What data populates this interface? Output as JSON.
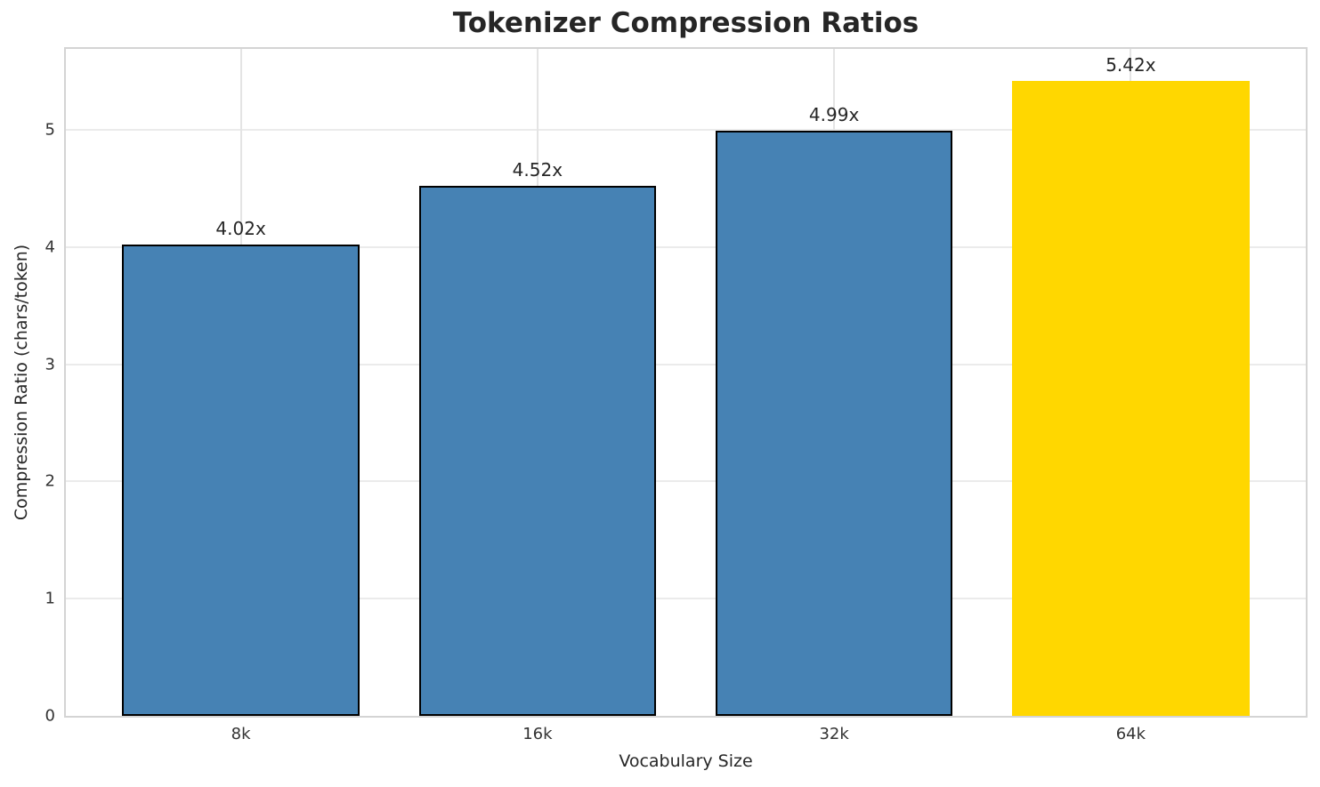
{
  "chart_data": {
    "type": "bar",
    "title": "Tokenizer Compression Ratios",
    "xlabel": "Vocabulary Size",
    "ylabel": "Compression Ratio (chars/token)",
    "categories": [
      "8k",
      "16k",
      "32k",
      "64k"
    ],
    "values": [
      4.02,
      4.52,
      4.99,
      5.42
    ],
    "bar_labels": [
      "4.02x",
      "4.52x",
      "4.99x",
      "5.42x"
    ],
    "bar_colors": [
      "#4682B4",
      "#4682B4",
      "#4682B4",
      "#FFD700"
    ],
    "bar_edge_colors": [
      "#000000",
      "#000000",
      "#000000",
      "none"
    ],
    "highlight_color": "#FFD700",
    "base_color": "#4682B4",
    "ylim": [
      0,
      5.69
    ],
    "yticks": [
      0,
      1,
      2,
      3,
      4,
      5
    ],
    "grid": true,
    "legend_position": "none"
  }
}
